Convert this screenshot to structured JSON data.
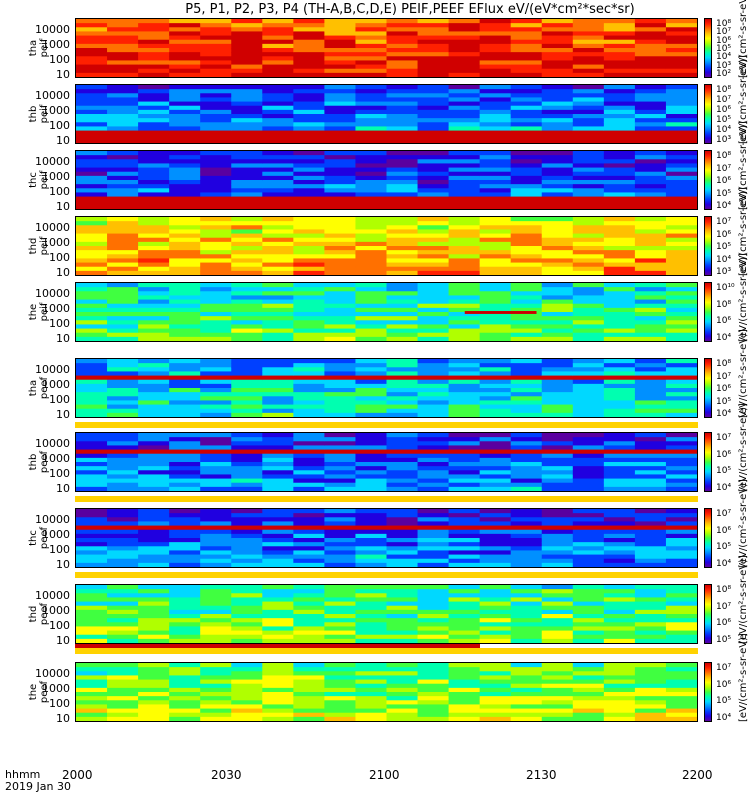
{
  "title": "P5, P1, P2, P3, P4 (TH-A,B,C,D,E) PEIF,PEEF EFlux eV/(eV*cm²*sec*sr)",
  "footer": {
    "line1": "hhmm",
    "line2": "2019 Jan 30"
  },
  "colors": {
    "accent": "#cc0000",
    "flag": "#ffd200"
  },
  "chart_data": {
    "type": "heatmap",
    "title": "P5, P1, P2, P3, P4 (TH-A,B,C,D,E) PEIF,PEEF EFlux eV/(eV*cm²*sec*sr)",
    "x_ticks": [
      "2000",
      "2030",
      "2100",
      "2130",
      "2200"
    ],
    "x_range": [
      "2000",
      "2200"
    ],
    "y_scale": "log",
    "y_ticks": [
      "10",
      "100",
      "1000",
      "10000"
    ],
    "colorscale": "rainbow (purple-blue-cyan-green-yellow-red)",
    "panels": [
      {
        "id": "tha-peif",
        "ylabel": [
          "tha",
          "peif"
        ],
        "cbar_ticks": [
          "10⁸",
          "10⁷",
          "10⁶",
          "10⁵",
          "10⁴",
          "10³",
          "10²"
        ],
        "cbar_label": "[eV/(cm²-s-sr-eV)]",
        "level": 0.9,
        "flag": "none"
      },
      {
        "id": "thb-peif",
        "ylabel": [
          "thb",
          "peif"
        ],
        "cbar_ticks": [
          "10⁸",
          "10⁷",
          "10⁶",
          "10⁵",
          "10⁴",
          "10³"
        ],
        "cbar_label": "[eV/(cm²-s-sr-eV)]",
        "level": 0.25,
        "flag": "none"
      },
      {
        "id": "thc-peif",
        "ylabel": [
          "thc",
          "peif"
        ],
        "cbar_ticks": [
          "10⁸",
          "10⁷",
          "10⁶",
          "10⁵",
          "10⁴"
        ],
        "cbar_label": "[eV/(cm²-s-sr-eV)]",
        "level": 0.2,
        "flag": "none"
      },
      {
        "id": "thd-peif",
        "ylabel": [
          "thd",
          "peif"
        ],
        "cbar_ticks": [
          "10⁷",
          "10⁶",
          "10⁵",
          "10⁴",
          "10³"
        ],
        "cbar_label": "[eV/(cm²-s-sr-eV)]",
        "level": 0.7,
        "flag": "none"
      },
      {
        "id": "the-peif",
        "ylabel": [
          "the",
          "peif"
        ],
        "cbar_ticks": [
          "10¹⁰",
          "10⁸",
          "10⁶",
          "10⁴"
        ],
        "cbar_label": "[eV/(cm²-s-sr-eV)]",
        "level": 0.45,
        "flag": "red-bar"
      },
      {
        "id": "tha-peef",
        "ylabel": [
          "tha",
          "peef"
        ],
        "cbar_ticks": [
          "10⁸",
          "10⁷",
          "10⁶",
          "10⁵",
          "10⁴"
        ],
        "cbar_label": "[eV/(cm²-s-sr-eV)]",
        "level": 0.35,
        "flag": "yellow-bottom"
      },
      {
        "id": "thb-peef",
        "ylabel": [
          "thb",
          "peef"
        ],
        "cbar_ticks": [
          "10⁷",
          "10⁶",
          "10⁵",
          "10⁴"
        ],
        "cbar_label": "[eV/(cm²-s-sr-eV)]",
        "level": 0.22,
        "flag": "yellow-bottom"
      },
      {
        "id": "thc-peef",
        "ylabel": [
          "thc",
          "peef"
        ],
        "cbar_ticks": [
          "10⁷",
          "10⁶",
          "10⁵",
          "10⁴"
        ],
        "cbar_label": "[eV/(cm²-s-sr-eV)]",
        "level": 0.22,
        "flag": "yellow-bottom"
      },
      {
        "id": "thd-peef",
        "ylabel": [
          "thd",
          "peef"
        ],
        "cbar_ticks": [
          "10⁸",
          "10⁷",
          "10⁶",
          "10⁵"
        ],
        "cbar_label": "[eV/(cm²-s-sr-eV)]",
        "level": 0.5,
        "flag": "red-yellow-bottom"
      },
      {
        "id": "the-peef",
        "ylabel": [
          "the",
          "peef"
        ],
        "cbar_ticks": [
          "10⁷",
          "10⁶",
          "10⁵",
          "10⁴"
        ],
        "cbar_label": "[eV/(cm²-s-sr-eV)]",
        "level": 0.55,
        "flag": "none"
      }
    ]
  }
}
